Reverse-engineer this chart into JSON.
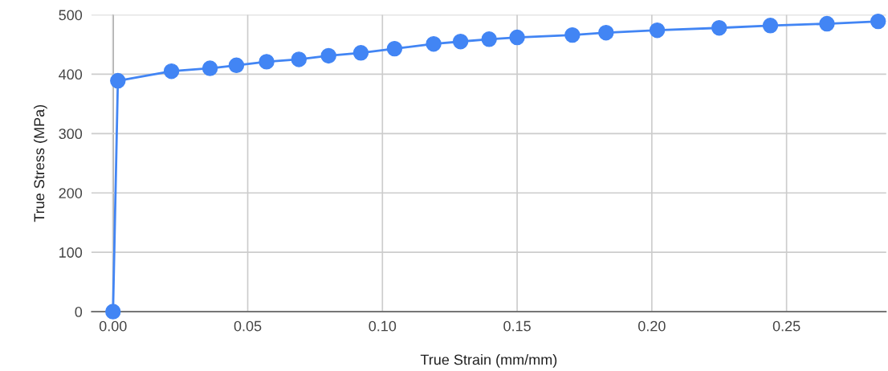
{
  "chart_data": {
    "type": "line",
    "xlabel": "True Strain (mm/mm)",
    "ylabel": "True Stress (MPa)",
    "x": [
      0,
      0.0018,
      0.0217,
      0.036,
      0.0458,
      0.057,
      0.069,
      0.08,
      0.092,
      0.1045,
      0.119,
      0.129,
      0.1396,
      0.15,
      0.1705,
      0.183,
      0.202,
      0.225,
      0.244,
      0.265,
      0.284
    ],
    "series": [
      {
        "color": "#4285f4",
        "values": [
          0,
          389,
          405,
          410,
          415,
          421,
          425,
          431,
          436,
          443,
          451,
          455,
          459,
          462,
          466,
          470,
          474,
          478,
          482,
          485,
          489
        ]
      }
    ],
    "xlim": [
      -0.008,
      0.287
    ],
    "ylim": [
      0,
      500
    ],
    "xticks": [
      {
        "value": 0,
        "label": "0.00"
      },
      0.05,
      {
        "value": 0.1,
        "label": "0.10"
      },
      0.15,
      {
        "value": 0.2,
        "label": "0.20"
      },
      0.25
    ],
    "yticks": [
      0,
      100,
      200,
      300,
      400,
      500
    ],
    "grid": true,
    "marker": "circle",
    "line_style": "solid"
  }
}
